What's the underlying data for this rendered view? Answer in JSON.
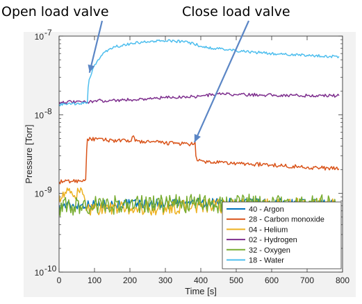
{
  "annotations": {
    "open_label": "Open load valve",
    "close_label": "Close load valve"
  },
  "chart_data": {
    "type": "line",
    "title": "",
    "xlabel": "Time [s]",
    "ylabel": "Pressure [Torr]",
    "xlim": [
      0,
      800
    ],
    "ylim": [
      1e-10,
      1e-07
    ],
    "yscale": "log",
    "xticks": [
      0,
      100,
      200,
      300,
      400,
      500,
      600,
      700,
      800
    ],
    "yticks": [
      {
        "value": 1e-10,
        "base": "10",
        "exp": "-10"
      },
      {
        "value": 1e-09,
        "base": "10",
        "exp": "-9"
      },
      {
        "value": 1e-08,
        "base": "10",
        "exp": "-8"
      },
      {
        "value": 1e-07,
        "base": "10",
        "exp": "-7"
      }
    ],
    "grid": false,
    "legend_position": "bottom-right",
    "annotations": [
      {
        "text": "Open load valve",
        "x": 80,
        "y": 1.4e-08
      },
      {
        "text": "Close load valve",
        "x": 390,
        "y": 4.2e-09
      }
    ],
    "series": [
      {
        "name": "40 - Argon",
        "color": "#0072BD",
        "x": [
          0,
          100,
          200,
          300,
          400,
          500,
          600,
          700,
          790
        ],
        "y": [
          7e-10,
          7.2e-10,
          7.4e-10,
          7.5e-10,
          7.6e-10,
          7.6e-10,
          7.5e-10,
          7.4e-10,
          7.3e-10
        ],
        "noise": 0.06
      },
      {
        "name": "28 - Carbon monoxide",
        "color": "#D95319",
        "x": [
          0,
          60,
          75,
          78,
          80,
          90,
          200,
          210,
          215,
          300,
          380,
          384,
          386,
          390,
          420,
          500,
          600,
          700,
          790
        ],
        "y": [
          1.4e-09,
          1.45e-09,
          1.5e-09,
          3.6e-09,
          4.9e-09,
          4.9e-09,
          4.6e-09,
          5.4e-09,
          4.6e-09,
          4.4e-09,
          4.2e-09,
          4.5e-09,
          3e-09,
          2.6e-09,
          2.5e-09,
          2.4e-09,
          2.3e-09,
          2.15e-09,
          2.05e-09
        ],
        "noise": 0.025
      },
      {
        "name": "04 - Helium",
        "color": "#EDB120",
        "x": [
          0,
          20,
          70,
          80,
          100,
          200,
          300,
          400,
          500,
          600,
          700,
          790
        ],
        "y": [
          9.5e-10,
          1e-09,
          9.5e-10,
          6.5e-10,
          6.5e-10,
          6.4e-10,
          6.6e-10,
          6.8e-10,
          7e-10,
          7e-10,
          7.1e-10,
          7.1e-10
        ],
        "noise": 0.09
      },
      {
        "name": "02 - Hydrogen",
        "color": "#7E2F8E",
        "x": [
          0,
          80,
          100,
          200,
          300,
          400,
          450,
          500,
          600,
          700,
          790
        ],
        "y": [
          1.45e-08,
          1.45e-08,
          1.5e-08,
          1.55e-08,
          1.65e-08,
          1.72e-08,
          1.85e-08,
          1.8e-08,
          1.78e-08,
          1.75e-08,
          1.75e-08
        ],
        "noise": 0.02
      },
      {
        "name": "32 - Oxygen",
        "color": "#77AC30",
        "x": [
          0,
          100,
          200,
          300,
          400,
          500,
          600,
          700,
          790
        ],
        "y": [
          6.8e-10,
          7e-10,
          7.2e-10,
          7.3e-10,
          7.4e-10,
          7.5e-10,
          7.4e-10,
          7.4e-10,
          7.3e-10
        ],
        "noise": 0.12
      },
      {
        "name": "18 - Water",
        "color": "#4DBEEE",
        "x": [
          0,
          60,
          80,
          82,
          85,
          95,
          110,
          130,
          160,
          200,
          250,
          300,
          350,
          380,
          400,
          450,
          500,
          600,
          700,
          790
        ],
        "y": [
          1.35e-08,
          1.38e-08,
          1.42e-08,
          2.2e-08,
          2.8e-08,
          3.8e-08,
          5e-08,
          6.3e-08,
          7.3e-08,
          8e-08,
          8.5e-08,
          8.7e-08,
          8.5e-08,
          8e-08,
          7.4e-08,
          6.9e-08,
          6.5e-08,
          6e-08,
          5.7e-08,
          5.5e-08
        ],
        "noise": 0.018
      }
    ]
  }
}
